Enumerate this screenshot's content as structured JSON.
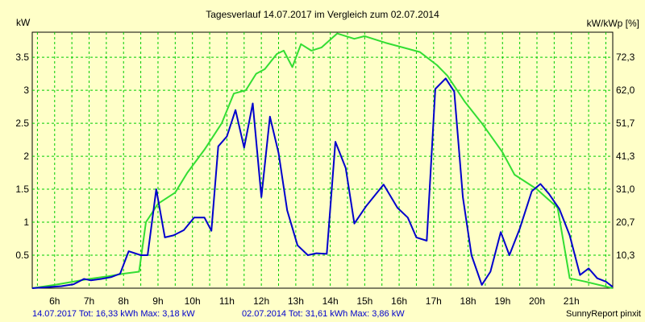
{
  "title": "Tagesverlauf 14.07.2017 im Vergleich zum 02.07.2014",
  "left_unit": "kW",
  "right_unit": "kW/kWp [%]",
  "footer": {
    "series1": "14.07.2017 Tot: 16,33 kWh Max: 3,18 kW",
    "series2": "02.07.2014 Tot: 31,61 kWh Max: 3,86 kW",
    "credit": "SunnyReport pinxit"
  },
  "colors": {
    "background": "#ffffc8",
    "grid": "#00cc00",
    "series1": "#0000cc",
    "series2": "#33dd33"
  },
  "chart_data": {
    "type": "line",
    "title": "Tagesverlauf 14.07.2017 im Vergleich zum 02.07.2014",
    "xlim": [
      5.35,
      22.2
    ],
    "ylim": [
      0,
      3.88
    ],
    "y_ticks": [
      {
        "v": 0.5,
        "label": "0.5"
      },
      {
        "v": 1,
        "label": "1"
      },
      {
        "v": 1.5,
        "label": "1.5"
      },
      {
        "v": 2,
        "label": "2"
      },
      {
        "v": 2.5,
        "label": "2.5"
      },
      {
        "v": 3,
        "label": "3"
      },
      {
        "v": 3.5,
        "label": "3.5"
      }
    ],
    "y2_ticks": [
      {
        "v": 0.5,
        "label": "10,3"
      },
      {
        "v": 1,
        "label": "20,7"
      },
      {
        "v": 1.5,
        "label": "31,0"
      },
      {
        "v": 2,
        "label": "41,3"
      },
      {
        "v": 2.5,
        "label": "51,7"
      },
      {
        "v": 3,
        "label": "62,0"
      },
      {
        "v": 3.5,
        "label": "72,3"
      }
    ],
    "x_ticks": [
      {
        "v": 6,
        "label": "6h"
      },
      {
        "v": 7,
        "label": "7h"
      },
      {
        "v": 8,
        "label": "8h"
      },
      {
        "v": 9,
        "label": "9h"
      },
      {
        "v": 10,
        "label": "10h"
      },
      {
        "v": 11,
        "label": "11h"
      },
      {
        "v": 12,
        "label": "12h"
      },
      {
        "v": 13,
        "label": "13h"
      },
      {
        "v": 14,
        "label": "14h"
      },
      {
        "v": 15,
        "label": "15h"
      },
      {
        "v": 16,
        "label": "16h"
      },
      {
        "v": 17,
        "label": "17h"
      },
      {
        "v": 18,
        "label": "18h"
      },
      {
        "v": 19,
        "label": "19h"
      },
      {
        "v": 20,
        "label": "20h"
      },
      {
        "v": 21,
        "label": "21h"
      }
    ],
    "grid": true,
    "series": [
      {
        "name": "14.07.2017",
        "color": "#0000cc",
        "points": [
          [
            5.35,
            0
          ],
          [
            6.2,
            0.03
          ],
          [
            6.55,
            0.06
          ],
          [
            6.85,
            0.14
          ],
          [
            7.05,
            0.12
          ],
          [
            7.35,
            0.14
          ],
          [
            7.65,
            0.17
          ],
          [
            7.9,
            0.22
          ],
          [
            8.15,
            0.56
          ],
          [
            8.5,
            0.5
          ],
          [
            8.7,
            0.5
          ],
          [
            8.95,
            1.5
          ],
          [
            9.2,
            0.77
          ],
          [
            9.45,
            0.8
          ],
          [
            9.75,
            0.88
          ],
          [
            10.05,
            1.07
          ],
          [
            10.35,
            1.07
          ],
          [
            10.55,
            0.87
          ],
          [
            10.75,
            2.15
          ],
          [
            11.0,
            2.3
          ],
          [
            11.25,
            2.7
          ],
          [
            11.5,
            2.13
          ],
          [
            11.75,
            2.8
          ],
          [
            12.0,
            1.38
          ],
          [
            12.25,
            2.6
          ],
          [
            12.5,
            2.05
          ],
          [
            12.75,
            1.18
          ],
          [
            13.05,
            0.65
          ],
          [
            13.35,
            0.5
          ],
          [
            13.6,
            0.53
          ],
          [
            13.9,
            0.52
          ],
          [
            14.15,
            2.22
          ],
          [
            14.45,
            1.82
          ],
          [
            14.7,
            0.98
          ],
          [
            15.05,
            1.25
          ],
          [
            15.55,
            1.57
          ],
          [
            15.95,
            1.22
          ],
          [
            16.25,
            1.07
          ],
          [
            16.5,
            0.77
          ],
          [
            16.8,
            0.72
          ],
          [
            17.05,
            3.02
          ],
          [
            17.35,
            3.18
          ],
          [
            17.6,
            2.98
          ],
          [
            17.85,
            1.38
          ],
          [
            18.1,
            0.5
          ],
          [
            18.4,
            0.05
          ],
          [
            18.65,
            0.25
          ],
          [
            18.95,
            0.85
          ],
          [
            19.2,
            0.5
          ],
          [
            19.5,
            0.9
          ],
          [
            19.85,
            1.47
          ],
          [
            20.1,
            1.58
          ],
          [
            20.35,
            1.43
          ],
          [
            20.65,
            1.2
          ],
          [
            20.95,
            0.8
          ],
          [
            21.25,
            0.2
          ],
          [
            21.5,
            0.3
          ],
          [
            21.75,
            0.15
          ],
          [
            22.0,
            0.1
          ],
          [
            22.2,
            0.02
          ]
        ]
      },
      {
        "name": "02.07.2014",
        "color": "#33dd33",
        "points": [
          [
            5.35,
            0
          ],
          [
            6.0,
            0.05
          ],
          [
            7.0,
            0.14
          ],
          [
            7.55,
            0.18
          ],
          [
            8.0,
            0.22
          ],
          [
            8.45,
            0.25
          ],
          [
            8.65,
            1.0
          ],
          [
            9.0,
            1.28
          ],
          [
            9.5,
            1.45
          ],
          [
            9.85,
            1.75
          ],
          [
            10.35,
            2.1
          ],
          [
            10.85,
            2.5
          ],
          [
            11.2,
            2.95
          ],
          [
            11.55,
            3.0
          ],
          [
            11.85,
            3.25
          ],
          [
            12.1,
            3.32
          ],
          [
            12.45,
            3.55
          ],
          [
            12.65,
            3.6
          ],
          [
            12.9,
            3.35
          ],
          [
            13.15,
            3.7
          ],
          [
            13.45,
            3.6
          ],
          [
            13.75,
            3.65
          ],
          [
            14.2,
            3.86
          ],
          [
            14.7,
            3.78
          ],
          [
            15.0,
            3.82
          ],
          [
            15.6,
            3.72
          ],
          [
            16.6,
            3.58
          ],
          [
            17.1,
            3.38
          ],
          [
            17.4,
            3.22
          ],
          [
            17.9,
            2.83
          ],
          [
            18.4,
            2.5
          ],
          [
            19.0,
            2.06
          ],
          [
            19.35,
            1.72
          ],
          [
            20.0,
            1.5
          ],
          [
            20.6,
            1.22
          ],
          [
            20.95,
            0.15
          ],
          [
            21.4,
            0.1
          ],
          [
            22.2,
            0
          ]
        ]
      }
    ]
  }
}
